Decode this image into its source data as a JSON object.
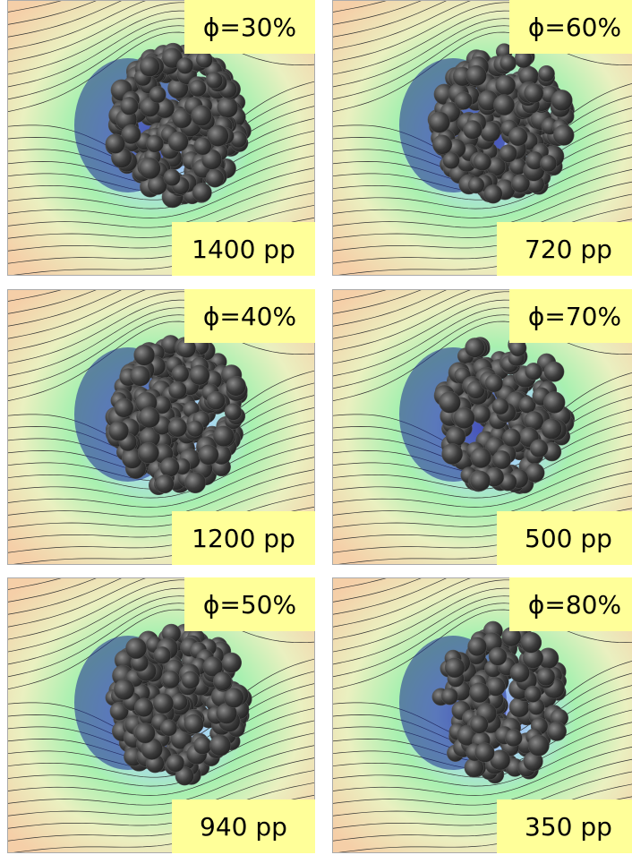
{
  "panels": [
    {
      "fraction": "ϕ=30%",
      "count": "1400 pp"
    },
    {
      "fraction": "ϕ=60%",
      "count": "720 pp"
    },
    {
      "fraction": "ϕ=40%",
      "count": "1200 pp"
    },
    {
      "fraction": "ϕ=70%",
      "count": "500 pp"
    },
    {
      "fraction": "ϕ=50%",
      "count": "940 pp"
    },
    {
      "fraction": "ϕ=80%",
      "count": "350 pp"
    }
  ]
}
